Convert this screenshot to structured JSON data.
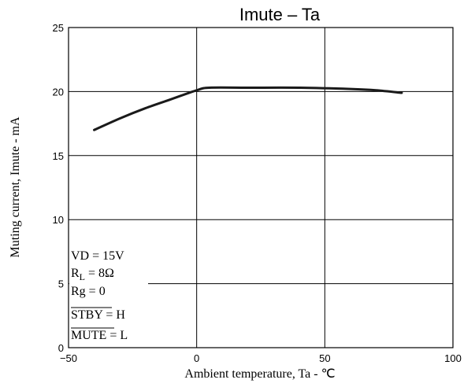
{
  "chart_data": {
    "type": "line",
    "title": "Imute  –  Ta",
    "xlabel": "Ambient temperature, Ta  -  ℃",
    "ylabel": "Muting current, Imute  -  mA",
    "xlim": [
      -50,
      100
    ],
    "ylim": [
      0,
      25
    ],
    "x_ticks": [
      -50,
      0,
      50,
      100
    ],
    "y_ticks": [
      0,
      5,
      10,
      15,
      20,
      25
    ],
    "x_tick_labels": [
      "−50",
      "0",
      "50",
      "100"
    ],
    "y_tick_labels": [
      "0",
      "5",
      "10",
      "15",
      "20",
      "25"
    ],
    "grid": true,
    "series": [
      {
        "x": [
          -40,
          -30,
          -20,
          -10,
          0,
          5,
          20,
          40,
          60,
          70,
          80
        ],
        "y": [
          17.0,
          17.9,
          18.7,
          19.4,
          20.1,
          20.3,
          20.3,
          20.3,
          20.2,
          20.1,
          19.9
        ]
      }
    ],
    "conditions": {
      "vd": "VD = 15V",
      "rl_main": "R",
      "rl_sub": "L",
      "rl_value": " = 8Ω",
      "rg": "Rg = 0",
      "stby": "STBY",
      "stby_value": " = H",
      "mute": "MUTE",
      "mute_value": " = L"
    }
  }
}
